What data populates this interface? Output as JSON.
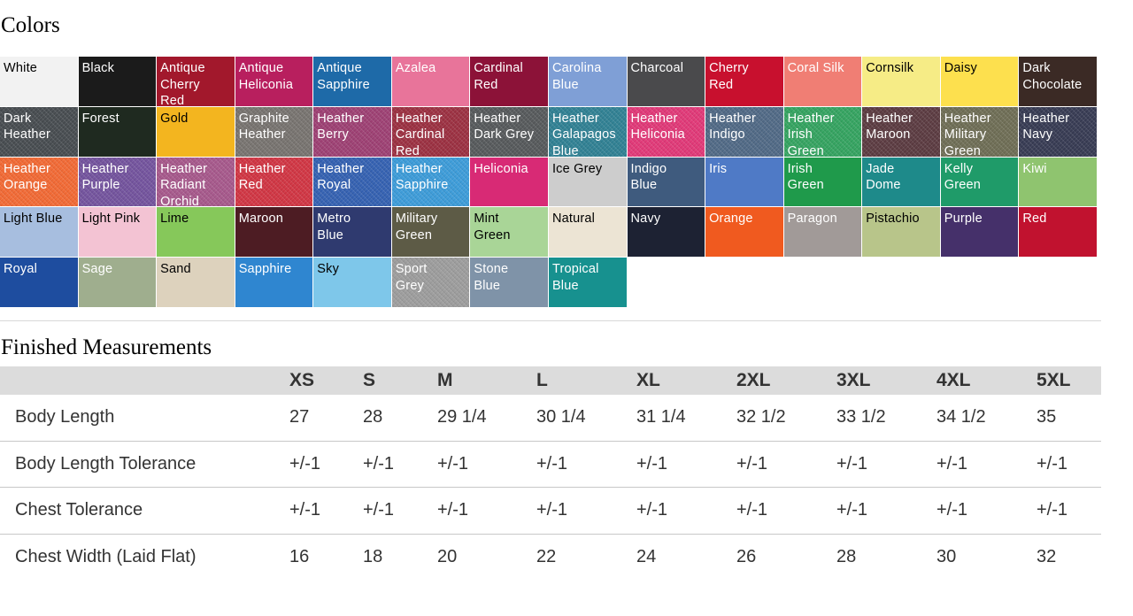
{
  "colors": {
    "title": "Colors",
    "swatches": [
      {
        "name": "White",
        "color": "#f2f2f2",
        "dark_text": true,
        "heather": false
      },
      {
        "name": "Black",
        "color": "#1b1b1b",
        "dark_text": false,
        "heather": false
      },
      {
        "name": "Antique\nCherry\nRed",
        "color": "#a2182c",
        "dark_text": false,
        "heather": false
      },
      {
        "name": "Antique\nHeliconia",
        "color": "#b81f5e",
        "dark_text": false,
        "heather": false
      },
      {
        "name": "Antique\nSapphire",
        "color": "#1e6aa8",
        "dark_text": false,
        "heather": false
      },
      {
        "name": "Azalea",
        "color": "#e8749a",
        "dark_text": false,
        "heather": false
      },
      {
        "name": "Cardinal\nRed",
        "color": "#8c1238",
        "dark_text": false,
        "heather": false
      },
      {
        "name": "Carolina\nBlue",
        "color": "#7f9fd6",
        "dark_text": false,
        "heather": false
      },
      {
        "name": "Charcoal",
        "color": "#4a4a4c",
        "dark_text": false,
        "heather": false
      },
      {
        "name": "Cherry\nRed",
        "color": "#c8102e",
        "dark_text": false,
        "heather": false
      },
      {
        "name": "Coral Silk",
        "color": "#f07e74",
        "dark_text": false,
        "heather": false
      },
      {
        "name": "Cornsilk",
        "color": "#f6ec86",
        "dark_text": true,
        "heather": false
      },
      {
        "name": "Daisy",
        "color": "#fde04e",
        "dark_text": true,
        "heather": false
      },
      {
        "name": "Dark\nChocolate",
        "color": "#3b2a25",
        "dark_text": false,
        "heather": false
      },
      {
        "name": "Dark\nHeather",
        "color": "#464b4f",
        "dark_text": false,
        "heather": true
      },
      {
        "name": "Forest",
        "color": "#1f2a20",
        "dark_text": false,
        "heather": false
      },
      {
        "name": "Gold",
        "color": "#f3b51f",
        "dark_text": true,
        "heather": false
      },
      {
        "name": "Graphite\nHeather",
        "color": "#76726e",
        "dark_text": false,
        "heather": true
      },
      {
        "name": "Heather\nBerry",
        "color": "#9c3f72",
        "dark_text": false,
        "heather": true
      },
      {
        "name": "Heather\nCardinal\nRed",
        "color": "#9a2f40",
        "dark_text": false,
        "heather": true
      },
      {
        "name": "Heather\nDark Grey",
        "color": "#55585a",
        "dark_text": false,
        "heather": true
      },
      {
        "name": "Heather\nGalapagos\nBlue",
        "color": "#2f7f92",
        "dark_text": false,
        "heather": true
      },
      {
        "name": "Heather\nHeliconia",
        "color": "#df3776",
        "dark_text": false,
        "heather": true
      },
      {
        "name": "Heather\nIndigo",
        "color": "#4f6884",
        "dark_text": false,
        "heather": true
      },
      {
        "name": "Heather\nIrish\nGreen",
        "color": "#33a25f",
        "dark_text": false,
        "heather": true
      },
      {
        "name": "Heather\nMaroon",
        "color": "#5a3a40",
        "dark_text": false,
        "heather": true
      },
      {
        "name": "Heather\nMilitary\nGreen",
        "color": "#6d6c54",
        "dark_text": false,
        "heather": true
      },
      {
        "name": "Heather\nNavy",
        "color": "#363a52",
        "dark_text": false,
        "heather": true
      },
      {
        "name": "Heather\nOrange",
        "color": "#f06833",
        "dark_text": false,
        "heather": true
      },
      {
        "name": "Heather\nPurple",
        "color": "#72529c",
        "dark_text": false,
        "heather": true
      },
      {
        "name": "Heather\nRadiant\nOrchid",
        "color": "#a5578a",
        "dark_text": false,
        "heather": true
      },
      {
        "name": "Heather\nRed",
        "color": "#cf3442",
        "dark_text": false,
        "heather": true
      },
      {
        "name": "Heather\nRoyal",
        "color": "#3360b0",
        "dark_text": false,
        "heather": true
      },
      {
        "name": "Heather\nSapphire",
        "color": "#3b9ad7",
        "dark_text": false,
        "heather": true
      },
      {
        "name": "Heliconia",
        "color": "#d82a75",
        "dark_text": false,
        "heather": false
      },
      {
        "name": "Ice Grey",
        "color": "#cdcdcd",
        "dark_text": true,
        "heather": false
      },
      {
        "name": "Indigo\nBlue",
        "color": "#3f5b7e",
        "dark_text": false,
        "heather": false
      },
      {
        "name": "Iris",
        "color": "#4f7ac6",
        "dark_text": false,
        "heather": false
      },
      {
        "name": "Irish\nGreen",
        "color": "#1f9a4b",
        "dark_text": false,
        "heather": false
      },
      {
        "name": "Jade\nDome",
        "color": "#1e8a8a",
        "dark_text": false,
        "heather": false
      },
      {
        "name": "Kelly\nGreen",
        "color": "#1f9b69",
        "dark_text": false,
        "heather": false
      },
      {
        "name": "Kiwi",
        "color": "#8fc46f",
        "dark_text": false,
        "heather": false
      },
      {
        "name": "Light Blue",
        "color": "#a7bedf",
        "dark_text": true,
        "heather": false
      },
      {
        "name": "Light Pink",
        "color": "#f3c3d3",
        "dark_text": true,
        "heather": false
      },
      {
        "name": "Lime",
        "color": "#86c85a",
        "dark_text": true,
        "heather": false
      },
      {
        "name": "Maroon",
        "color": "#4d1c23",
        "dark_text": false,
        "heather": false
      },
      {
        "name": "Metro\nBlue",
        "color": "#2f3a6f",
        "dark_text": false,
        "heather": false
      },
      {
        "name": "Military\nGreen",
        "color": "#5d5b46",
        "dark_text": false,
        "heather": false
      },
      {
        "name": "Mint\nGreen",
        "color": "#a9d597",
        "dark_text": true,
        "heather": false
      },
      {
        "name": "Natural",
        "color": "#ece4d4",
        "dark_text": true,
        "heather": false
      },
      {
        "name": "Navy",
        "color": "#1d2233",
        "dark_text": false,
        "heather": false
      },
      {
        "name": "Orange",
        "color": "#f05a1f",
        "dark_text": false,
        "heather": false
      },
      {
        "name": "Paragon",
        "color": "#a19a98",
        "dark_text": false,
        "heather": false
      },
      {
        "name": "Pistachio",
        "color": "#b8c58a",
        "dark_text": true,
        "heather": false
      },
      {
        "name": "Purple",
        "color": "#45306a",
        "dark_text": false,
        "heather": false
      },
      {
        "name": "Red",
        "color": "#c1122f",
        "dark_text": false,
        "heather": false
      },
      {
        "name": "Royal",
        "color": "#1e4d9f",
        "dark_text": false,
        "heather": false
      },
      {
        "name": "Sage",
        "color": "#9fae8e",
        "dark_text": false,
        "heather": false
      },
      {
        "name": "Sand",
        "color": "#ddd2bd",
        "dark_text": true,
        "heather": false
      },
      {
        "name": "Sapphire",
        "color": "#2f86d0",
        "dark_text": false,
        "heather": false
      },
      {
        "name": "Sky",
        "color": "#7ec7ea",
        "dark_text": true,
        "heather": false
      },
      {
        "name": "Sport\nGrey",
        "color": "#9b9b9b",
        "dark_text": false,
        "heather": true
      },
      {
        "name": "Stone\nBlue",
        "color": "#7f93a8",
        "dark_text": false,
        "heather": false
      },
      {
        "name": "Tropical\nBlue",
        "color": "#17918f",
        "dark_text": false,
        "heather": false
      }
    ]
  },
  "measurements": {
    "title": "Finished Measurements",
    "sizes": [
      "XS",
      "S",
      "M",
      "L",
      "XL",
      "2XL",
      "3XL",
      "4XL",
      "5XL"
    ],
    "rows": [
      {
        "label": "Body Length",
        "values": [
          "27",
          "28",
          "29 1/4",
          "30 1/4",
          "31 1/4",
          "32 1/2",
          "33 1/2",
          "34 1/2",
          "35"
        ]
      },
      {
        "label": "Body Length Tolerance",
        "values": [
          "+/-1",
          "+/-1",
          "+/-1",
          "+/-1",
          "+/-1",
          "+/-1",
          "+/-1",
          "+/-1",
          "+/-1"
        ]
      },
      {
        "label": "Chest Tolerance",
        "values": [
          "+/-1",
          "+/-1",
          "+/-1",
          "+/-1",
          "+/-1",
          "+/-1",
          "+/-1",
          "+/-1",
          "+/-1"
        ]
      },
      {
        "label": "Chest Width (Laid Flat)",
        "values": [
          "16",
          "18",
          "20",
          "22",
          "24",
          "26",
          "28",
          "30",
          "32"
        ]
      }
    ]
  }
}
